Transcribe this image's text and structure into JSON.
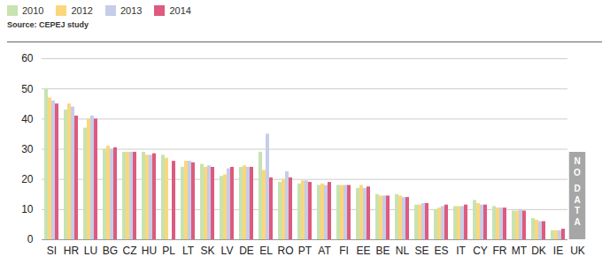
{
  "chart_data": {
    "type": "bar",
    "subtitle": "Source: CEPEJ study",
    "categories": [
      "SI",
      "HR",
      "LU",
      "BG",
      "CZ",
      "HU",
      "PL",
      "LT",
      "SK",
      "LV",
      "DE",
      "EL",
      "RO",
      "PT",
      "AT",
      "FI",
      "EE",
      "BE",
      "NL",
      "SE",
      "ES",
      "IT",
      "CY",
      "FR",
      "MT",
      "DK",
      "IE",
      "UK"
    ],
    "series": [
      {
        "name": "2010",
        "color": "#c6e3b1",
        "values": [
          50,
          43,
          37,
          30,
          29,
          29,
          28,
          24,
          25,
          21,
          24,
          29,
          19,
          18.5,
          18,
          18,
          17,
          15,
          15,
          11.5,
          10,
          11,
          13,
          11,
          9.5,
          7,
          3,
          null
        ]
      },
      {
        "name": "2012",
        "color": "#fbd77c",
        "values": [
          47,
          45,
          40,
          31,
          29,
          28,
          27,
          26,
          24,
          21.5,
          24.5,
          23,
          20,
          19.5,
          18.5,
          18,
          18,
          14.5,
          14.5,
          11.5,
          10.5,
          11,
          12,
          10.5,
          9.5,
          6.5,
          3,
          null
        ]
      },
      {
        "name": "2013",
        "color": "#c5cde9",
        "values": [
          46,
          44,
          41,
          30,
          29,
          28,
          null,
          26,
          24.5,
          23.5,
          24,
          35,
          22.5,
          19.5,
          18,
          18,
          17,
          14.5,
          14,
          12,
          11,
          11,
          11.5,
          10.5,
          10,
          6,
          3,
          null
        ]
      },
      {
        "name": "2014",
        "color": "#de5a7e",
        "values": [
          45,
          41,
          40,
          30.5,
          29,
          28.5,
          26,
          25.5,
          24,
          24,
          24,
          20.5,
          20.5,
          19,
          19,
          18,
          17.5,
          14.5,
          14,
          12,
          11.5,
          11.5,
          11.5,
          10.5,
          9.5,
          6,
          3.5,
          null
        ]
      }
    ],
    "ylim": [
      0,
      60
    ],
    "yticks": [
      0,
      10,
      20,
      30,
      40,
      50,
      60
    ],
    "grid": true,
    "legend": "top-left",
    "annotations": [
      {
        "category": "UK",
        "text": "NO DATA"
      }
    ]
  }
}
